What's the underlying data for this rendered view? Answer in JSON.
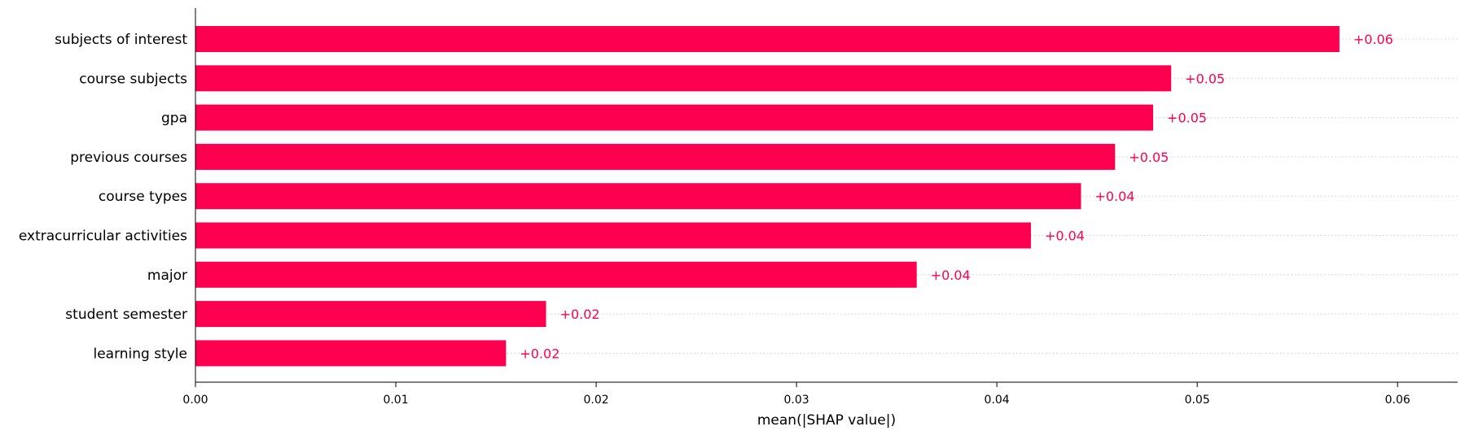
{
  "chart_data": {
    "type": "bar",
    "orientation": "horizontal",
    "title": "",
    "xlabel": "mean(|SHAP value|)",
    "ylabel": "",
    "xlim": [
      0,
      0.063
    ],
    "xticks": [
      0.0,
      0.01,
      0.02,
      0.03,
      0.04,
      0.05,
      0.06
    ],
    "xtick_labels": [
      "0.00",
      "0.01",
      "0.02",
      "0.03",
      "0.04",
      "0.05",
      "0.06"
    ],
    "grid": "dotted horizontal guides per bar",
    "categories": [
      "subjects of interest",
      "course subjects",
      "gpa",
      "previous courses",
      "course types",
      "extracurricular activities",
      "major",
      "student semester",
      "learning style"
    ],
    "values": [
      0.0571,
      0.0487,
      0.0478,
      0.0459,
      0.0442,
      0.0417,
      0.036,
      0.0175,
      0.0155
    ],
    "data_labels": [
      "+0.06",
      "+0.05",
      "+0.05",
      "+0.05",
      "+0.04",
      "+0.04",
      "+0.04",
      "+0.02",
      "+0.02"
    ],
    "bar_color": "#ff0051"
  }
}
